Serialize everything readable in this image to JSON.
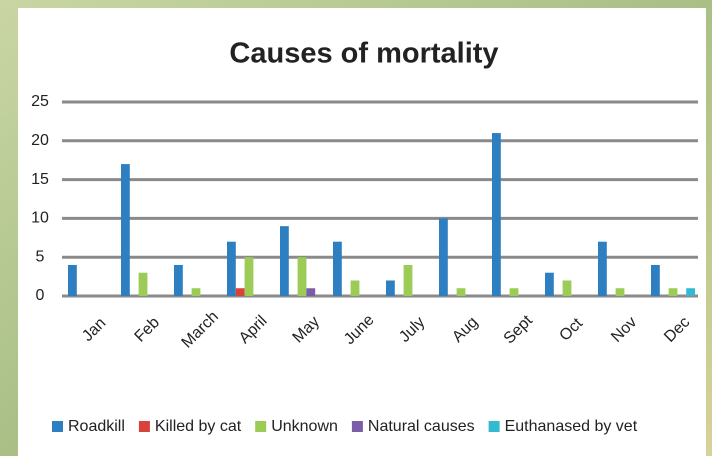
{
  "chart_data": {
    "type": "bar",
    "title": "Causes of mortality",
    "categories": [
      "Jan",
      "Feb",
      "March",
      "April",
      "May",
      "June",
      "July",
      "Aug",
      "Sept",
      "Oct",
      "Nov",
      "Dec"
    ],
    "series": [
      {
        "name": "Roadkill",
        "color": "#2e7fc2",
        "values": [
          4,
          17,
          4,
          7,
          9,
          7,
          2,
          10,
          21,
          3,
          7,
          4
        ]
      },
      {
        "name": "Killed by cat",
        "color": "#d9423a",
        "values": [
          0,
          0,
          0,
          1,
          0,
          0,
          0,
          0,
          0,
          0,
          0,
          0
        ]
      },
      {
        "name": "Unknown",
        "color": "#9ccc55",
        "values": [
          0,
          3,
          1,
          5,
          5,
          2,
          4,
          1,
          1,
          2,
          1,
          1
        ]
      },
      {
        "name": "Natural causes",
        "color": "#7b5ea7",
        "values": [
          0,
          0,
          0,
          0,
          1,
          0,
          0,
          0,
          0,
          0,
          0,
          0
        ]
      },
      {
        "name": "Euthanased by vet",
        "color": "#33b9d1",
        "values": [
          0,
          0,
          0,
          0,
          0,
          0,
          0,
          0,
          0,
          0,
          0,
          1
        ]
      }
    ],
    "ylim": [
      0,
      25
    ],
    "yticks": [
      0,
      5,
      10,
      15,
      20,
      25
    ],
    "grid": true,
    "legend": "bottom"
  }
}
